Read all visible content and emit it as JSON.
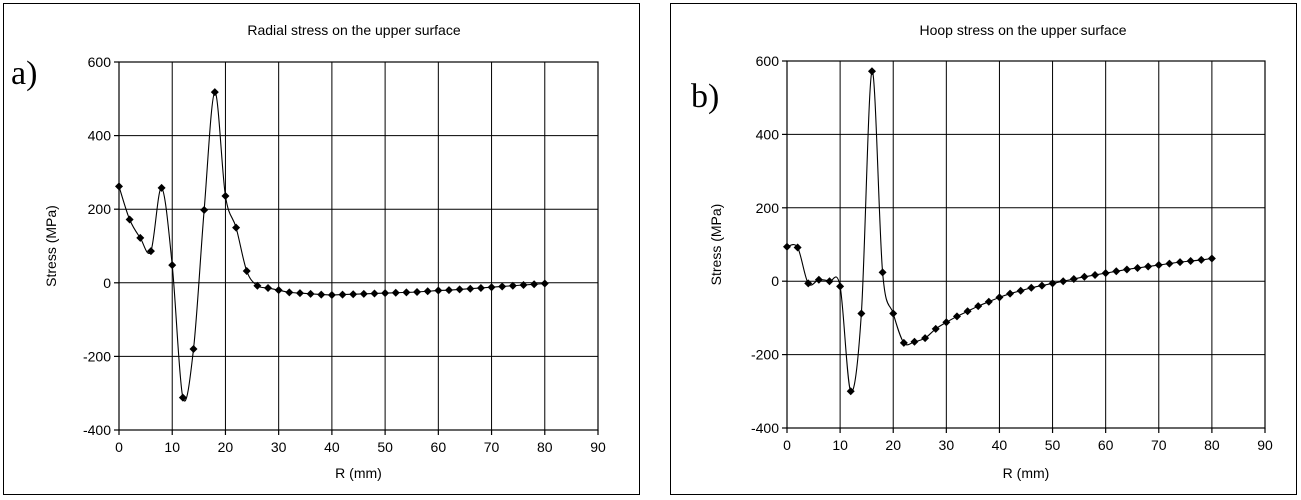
{
  "chart_data": [
    {
      "type": "scatter",
      "panel_label": "a)",
      "title": "Radial stress on the upper surface",
      "xlabel": "R (mm)",
      "ylabel": "Stress (MPa)",
      "xlim": [
        0,
        90
      ],
      "ylim": [
        -400,
        600
      ],
      "xticks": [
        0,
        10,
        20,
        30,
        40,
        50,
        60,
        70,
        80,
        90
      ],
      "yticks": [
        -400,
        -200,
        0,
        200,
        400,
        600
      ],
      "grid": true,
      "legend": false,
      "marker": "diamond",
      "line": "smooth",
      "color": "#000000",
      "series": [
        {
          "x": [
            0,
            2,
            4,
            6,
            8,
            10,
            12,
            14,
            16,
            18,
            20,
            22,
            24,
            26,
            28,
            30,
            32,
            34,
            36,
            38,
            40,
            42,
            44,
            46,
            48,
            50,
            52,
            54,
            56,
            58,
            60,
            62,
            64,
            66,
            68,
            70,
            72,
            74,
            76,
            78,
            80
          ],
          "y": [
            262,
            172,
            122,
            86,
            258,
            48,
            -312,
            -180,
            198,
            518,
            236,
            150,
            32,
            -8,
            -14,
            -20,
            -26,
            -28,
            -30,
            -32,
            -33,
            -32,
            -31,
            -30,
            -29,
            -28,
            -27,
            -26,
            -25,
            -23,
            -21,
            -20,
            -18,
            -16,
            -14,
            -12,
            -10,
            -8,
            -6,
            -4,
            -2
          ]
        }
      ]
    },
    {
      "type": "scatter",
      "panel_label": "b)",
      "title": "Hoop stress on the upper surface",
      "xlabel": "R (mm)",
      "ylabel": "Stress (MPa)",
      "xlim": [
        0,
        90
      ],
      "ylim": [
        -400,
        600
      ],
      "xticks": [
        0,
        10,
        20,
        30,
        40,
        50,
        60,
        70,
        80,
        90
      ],
      "yticks": [
        -400,
        -200,
        0,
        200,
        400,
        600
      ],
      "grid": true,
      "legend": false,
      "marker": "diamond",
      "line": "smooth",
      "color": "#000000",
      "series": [
        {
          "x": [
            0,
            2,
            4,
            6,
            8,
            10,
            12,
            14,
            16,
            18,
            20,
            22,
            24,
            26,
            28,
            30,
            32,
            34,
            36,
            38,
            40,
            42,
            44,
            46,
            48,
            50,
            52,
            54,
            56,
            58,
            60,
            62,
            64,
            66,
            68,
            70,
            72,
            74,
            76,
            78,
            80
          ],
          "y": [
            94,
            92,
            -6,
            4,
            0,
            -14,
            -300,
            -88,
            572,
            24,
            -88,
            -168,
            -165,
            -155,
            -130,
            -112,
            -96,
            -82,
            -68,
            -56,
            -44,
            -34,
            -26,
            -18,
            -12,
            -6,
            0,
            6,
            12,
            17,
            22,
            27,
            32,
            36,
            40,
            44,
            48,
            52,
            55,
            58,
            62
          ]
        }
      ]
    }
  ]
}
